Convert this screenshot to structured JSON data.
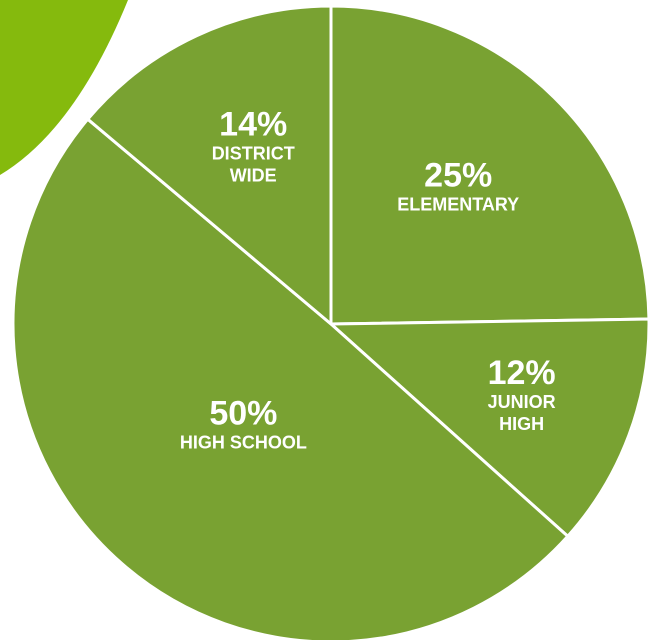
{
  "chart_data": {
    "type": "pie",
    "title": "",
    "slices": [
      {
        "label": "ELEMENTARY",
        "label_lines": [
          "ELEMENTARY"
        ],
        "percent_text": "25%",
        "value": 25
      },
      {
        "label": "JUNIOR HIGH",
        "label_lines": [
          "JUNIOR",
          "HIGH"
        ],
        "percent_text": "12%",
        "value": 12
      },
      {
        "label": "HIGH SCHOOL",
        "label_lines": [
          "HIGH SCHOOL"
        ],
        "percent_text": "50%",
        "value": 50
      },
      {
        "label": "DISTRICT WIDE",
        "label_lines": [
          "DISTRICT",
          "WIDE"
        ],
        "percent_text": "14%",
        "value": 14
      }
    ],
    "colors": {
      "slice_fill": "#79A232",
      "divider": "#ffffff",
      "label_text": "#ffffff",
      "accent_shape": "#85BA0D"
    }
  }
}
